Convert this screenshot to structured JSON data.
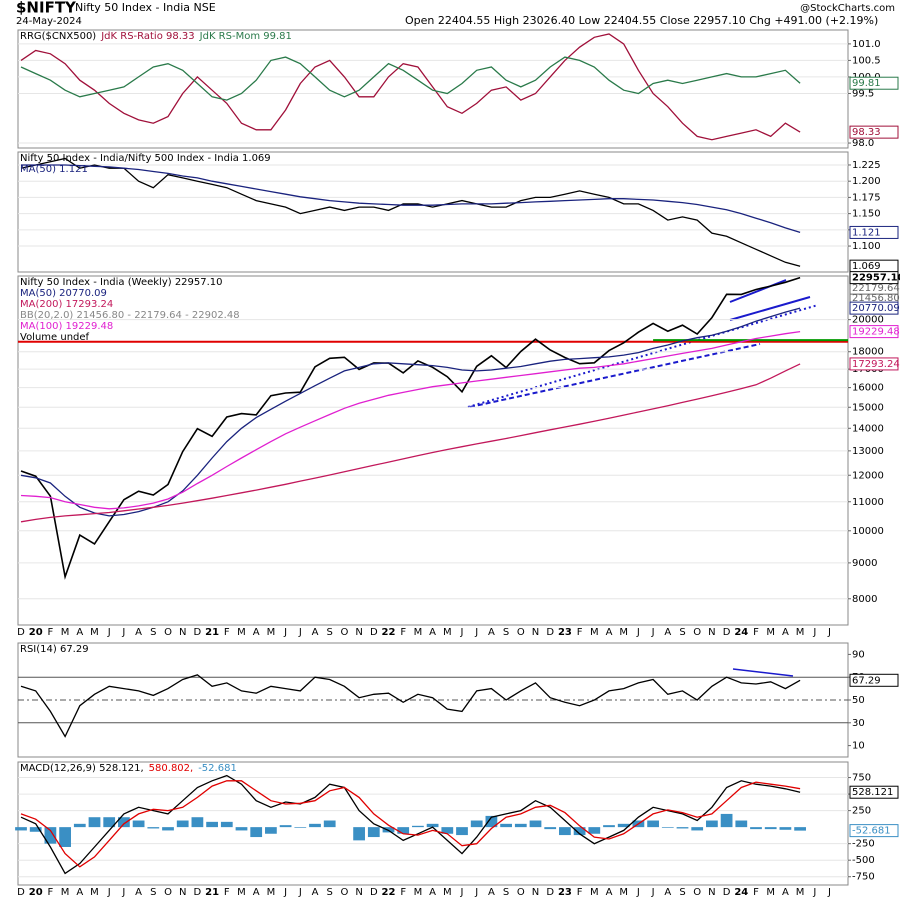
{
  "header": {
    "symbol": "$NIFTY",
    "name": "Nifty 50 Index - India NSE",
    "date": "24-May-2024",
    "quote": "Open 22404.55  High 23026.40  Low 22404.55  Close 22957.10  Chg +491.00 (+2.19%)",
    "credit": "@StockCharts.com"
  },
  "chart_data": [
    {
      "type": "line",
      "title": "RRG($CNX500)",
      "legend": "inline",
      "ylim": [
        97.85,
        101.42
      ],
      "yticks": [
        {
          "value": 101,
          "label": "101.0"
        },
        100.5,
        {
          "value": 100,
          "label": "100.0"
        },
        99.5,
        {
          "value": 98,
          "label": "98.0"
        }
      ],
      "grid": true,
      "series": [
        {
          "name": "JdK RS-Ratio 98.33",
          "color": "#a0103a",
          "last_label": "98.33",
          "values": [
            100.5,
            100.8,
            100.7,
            100.4,
            99.9,
            99.6,
            99.2,
            98.9,
            98.7,
            98.6,
            98.8,
            99.5,
            100.0,
            99.6,
            99.2,
            98.6,
            98.4,
            98.4,
            99.0,
            99.8,
            100.3,
            100.5,
            100.0,
            99.4,
            99.4,
            100.0,
            100.4,
            100.3,
            99.7,
            99.1,
            98.9,
            99.2,
            99.6,
            99.7,
            99.3,
            99.5,
            100.0,
            100.5,
            100.9,
            101.2,
            101.3,
            101.0,
            100.2,
            99.5,
            99.1,
            98.6,
            98.2,
            98.1,
            98.2,
            98.3,
            98.4,
            98.2,
            98.6,
            98.33,
            null,
            null
          ]
        },
        {
          "name": "JdK RS-Mom 99.81",
          "color": "#2a7a4a",
          "last_label": "99.81",
          "values": [
            100.3,
            100.1,
            99.9,
            99.6,
            99.4,
            99.5,
            99.6,
            99.7,
            100.0,
            100.3,
            100.4,
            100.2,
            99.8,
            99.4,
            99.3,
            99.5,
            99.9,
            100.5,
            100.6,
            100.4,
            100.0,
            99.6,
            99.4,
            99.6,
            100.0,
            100.4,
            100.2,
            99.9,
            99.6,
            99.5,
            99.8,
            100.2,
            100.3,
            99.9,
            99.7,
            99.9,
            100.3,
            100.6,
            100.5,
            100.3,
            99.9,
            99.6,
            99.5,
            99.8,
            99.9,
            99.8,
            99.9,
            100.0,
            100.1,
            100.0,
            100.0,
            100.1,
            100.2,
            99.81,
            null,
            null
          ]
        }
      ]
    },
    {
      "type": "line",
      "legend": "stacked",
      "ylim": [
        1.06,
        1.245
      ],
      "yticks": [
        1.225,
        {
          "value": 1.2,
          "label": "1.200"
        },
        1.175,
        {
          "value": 1.15,
          "label": "1.150"
        },
        1.125,
        {
          "value": 1.1,
          "label": "1.100"
        }
      ],
      "grid": true,
      "series": [
        {
          "name": "Nifty 50 Index - India/Nifty 500 Index - India 1.069",
          "color": "#000000",
          "last_label": "1.069",
          "values": [
            1.22,
            1.225,
            1.23,
            1.235,
            1.22,
            1.225,
            1.22,
            1.22,
            1.2,
            1.19,
            1.21,
            1.205,
            1.2,
            1.195,
            1.19,
            1.18,
            1.17,
            1.165,
            1.16,
            1.15,
            1.155,
            1.16,
            1.155,
            1.16,
            1.16,
            1.155,
            1.165,
            1.165,
            1.16,
            1.165,
            1.17,
            1.165,
            1.16,
            1.16,
            1.17,
            1.175,
            1.175,
            1.18,
            1.185,
            1.18,
            1.175,
            1.165,
            1.165,
            1.155,
            1.14,
            1.145,
            1.14,
            1.12,
            1.115,
            1.105,
            1.095,
            1.085,
            1.075,
            1.069,
            null,
            null
          ]
        },
        {
          "name": "MA(50) 1.121",
          "color": "#1a237e",
          "last_label": "1.121",
          "values": [
            1.225,
            1.225,
            1.225,
            1.225,
            1.224,
            1.223,
            1.222,
            1.22,
            1.218,
            1.215,
            1.212,
            1.208,
            1.205,
            1.2,
            1.196,
            1.192,
            1.188,
            1.184,
            1.18,
            1.176,
            1.173,
            1.17,
            1.168,
            1.166,
            1.165,
            1.164,
            1.163,
            1.163,
            1.163,
            1.164,
            1.165,
            1.165,
            1.165,
            1.166,
            1.167,
            1.168,
            1.169,
            1.17,
            1.171,
            1.172,
            1.173,
            1.173,
            1.172,
            1.171,
            1.169,
            1.167,
            1.164,
            1.16,
            1.156,
            1.15,
            1.143,
            1.136,
            1.128,
            1.121,
            null,
            null
          ]
        }
      ]
    },
    {
      "type": "line",
      "legend": "stacked",
      "log": true,
      "ylim": [
        7340,
        23080
      ],
      "yticks": [
        20000,
        18000,
        17000,
        16000,
        15000,
        14000,
        13000,
        12000,
        11000,
        10000,
        9000,
        8000
      ],
      "grid": true,
      "categories": [
        "D",
        "20",
        "F",
        "M",
        "A",
        "M",
        "J",
        "J",
        "A",
        "S",
        "O",
        "N",
        "D",
        "21",
        "F",
        "M",
        "A",
        "M",
        "J",
        "J",
        "A",
        "S",
        "O",
        "N",
        "D",
        "22",
        "F",
        "M",
        "A",
        "M",
        "J",
        "J",
        "A",
        "S",
        "O",
        "N",
        "D",
        "23",
        "F",
        "M",
        "A",
        "M",
        "J",
        "J",
        "A",
        "S",
        "O",
        "N",
        "D",
        "24",
        "F",
        "M",
        "A",
        "M",
        "J",
        "J"
      ],
      "hlines": [
        {
          "value": 18600,
          "color": "#e00000"
        },
        {
          "value": 18700,
          "color": "#009900"
        }
      ],
      "series": [
        {
          "name": "Nifty 50 Index - India (Weekly) 22957.10",
          "color": "#000000",
          "last_label": "22957.10",
          "values": [
            12168,
            11962,
            11202,
            8598,
            9860,
            9580,
            10302,
            11073,
            11388,
            11248,
            11642,
            12969,
            13982,
            13635,
            14529,
            14691,
            14631,
            15583,
            15722,
            15763,
            17132,
            17618,
            17672,
            16983,
            17354,
            17340,
            16794,
            17465,
            17103,
            16585,
            15780,
            17158,
            17759,
            17094,
            18012,
            18758,
            18105,
            17662,
            17304,
            17360,
            18065,
            18534,
            19189,
            19754,
            19254,
            19638,
            19080,
            20133,
            21731,
            21726,
            22083,
            22327,
            22605,
            22957.1,
            null,
            null
          ]
        },
        {
          "name": "MA(50) 20770.09",
          "color": "#1a237e",
          "last_label": "20770.09",
          "values": [
            12000,
            11900,
            11700,
            11200,
            10800,
            10600,
            10500,
            10550,
            10650,
            10800,
            11000,
            11400,
            12000,
            12700,
            13400,
            14000,
            14500,
            14900,
            15300,
            15700,
            16100,
            16500,
            16900,
            17100,
            17300,
            17350,
            17300,
            17250,
            17200,
            17100,
            16950,
            16900,
            16950,
            17050,
            17150,
            17300,
            17450,
            17550,
            17600,
            17650,
            17700,
            17800,
            17950,
            18200,
            18400,
            18650,
            18850,
            19000,
            19250,
            19550,
            19900,
            20200,
            20500,
            20770.09,
            null,
            null
          ]
        },
        {
          "name": "MA(200) 17293.24",
          "color": "#c2185b",
          "last_label": "17293.24",
          "values": [
            10300,
            10380,
            10450,
            10500,
            10540,
            10580,
            10620,
            10680,
            10740,
            10800,
            10870,
            10950,
            11040,
            11130,
            11230,
            11330,
            11430,
            11540,
            11650,
            11770,
            11890,
            12010,
            12140,
            12270,
            12400,
            12530,
            12660,
            12800,
            12930,
            13060,
            13180,
            13300,
            13420,
            13540,
            13670,
            13800,
            13930,
            14060,
            14190,
            14330,
            14470,
            14620,
            14770,
            14920,
            15080,
            15240,
            15410,
            15580,
            15760,
            15950,
            16150,
            16500,
            16900,
            17293.24,
            null,
            null
          ]
        },
        {
          "name": "MA(100) 19229.48",
          "color": "#e020d0",
          "last_label": "19229.48",
          "values": [
            11230,
            11200,
            11150,
            11000,
            10900,
            10800,
            10750,
            10780,
            10850,
            10950,
            11100,
            11350,
            11680,
            12000,
            12350,
            12700,
            13050,
            13400,
            13750,
            14050,
            14350,
            14650,
            14950,
            15200,
            15400,
            15600,
            15750,
            15900,
            16050,
            16150,
            16250,
            16350,
            16450,
            16550,
            16650,
            16750,
            16850,
            16950,
            17050,
            17100,
            17200,
            17300,
            17450,
            17600,
            17750,
            17900,
            18050,
            18200,
            18400,
            18600,
            18800,
            18950,
            19100,
            19229.48,
            null,
            null
          ]
        }
      ],
      "bb": {
        "label": "BB(20,2.0) 21456.80 - 22179.64 - 22902.48",
        "lower": 21456.8,
        "middle": 22179.64,
        "box_labels": [
          "21456.80",
          "22179.64"
        ]
      },
      "volume_label": "Volume undef"
    },
    {
      "type": "line",
      "legend": "stacked",
      "ylim": [
        0,
        100
      ],
      "yticks": [
        90,
        70,
        50,
        30,
        10
      ],
      "ref_lines": [
        70,
        50,
        30
      ],
      "series": [
        {
          "name": "RSI(14) 67.29",
          "color": "#000000",
          "last_label": "67.29",
          "values": [
            62,
            58,
            40,
            18,
            45,
            55,
            62,
            60,
            58,
            54,
            60,
            68,
            72,
            62,
            65,
            58,
            56,
            62,
            60,
            58,
            70,
            68,
            62,
            52,
            55,
            56,
            48,
            55,
            52,
            42,
            40,
            58,
            60,
            50,
            58,
            65,
            52,
            48,
            45,
            50,
            58,
            60,
            65,
            68,
            55,
            58,
            50,
            62,
            70,
            65,
            64,
            66,
            60,
            67.29,
            null,
            null
          ]
        }
      ]
    },
    {
      "type": "line",
      "legend": "inline",
      "ylim": [
        -875,
        985
      ],
      "yticks": [
        750,
        500,
        250,
        -250,
        -500,
        -750
      ],
      "grid": true,
      "series": [
        {
          "name": "-52.681",
          "kind": "bar",
          "color": "#3a8fc4",
          "last_label": "-52.681",
          "values": [
            -50,
            -70,
            -250,
            -300,
            50,
            150,
            150,
            150,
            100,
            -20,
            -50,
            100,
            150,
            80,
            80,
            -50,
            -150,
            -100,
            30,
            -10,
            50,
            100,
            0,
            -200,
            -150,
            -80,
            -100,
            20,
            50,
            -100,
            -120,
            100,
            170,
            50,
            50,
            100,
            -30,
            -120,
            -120,
            -100,
            30,
            50,
            100,
            100,
            -10,
            -20,
            -50,
            100,
            200,
            100,
            -30,
            -30,
            -40,
            -52.681,
            null,
            null
          ]
        },
        {
          "name": "MACD(12,26,9) 528.121,",
          "color": "#000000",
          "last_label": "528.121",
          "values": [
            150,
            50,
            -300,
            -700,
            -550,
            -300,
            -50,
            200,
            300,
            250,
            200,
            400,
            600,
            700,
            780,
            650,
            400,
            300,
            380,
            350,
            450,
            650,
            600,
            250,
            50,
            -50,
            -200,
            -100,
            0,
            -200,
            -400,
            -150,
            150,
            200,
            250,
            400,
            300,
            100,
            -100,
            -250,
            -150,
            -50,
            150,
            300,
            250,
            200,
            100,
            300,
            600,
            700,
            650,
            620,
            580,
            528.121,
            null,
            null
          ]
        },
        {
          "name": "580.802,",
          "color": "#e00000",
          "values": [
            200,
            120,
            -50,
            -400,
            -600,
            -450,
            -200,
            50,
            200,
            270,
            250,
            300,
            450,
            620,
            700,
            700,
            550,
            400,
            350,
            360,
            400,
            550,
            600,
            450,
            200,
            30,
            -100,
            -120,
            -50,
            -100,
            -280,
            -250,
            -20,
            150,
            200,
            300,
            330,
            220,
            20,
            -150,
            -180,
            -100,
            50,
            200,
            260,
            220,
            150,
            200,
            400,
            600,
            680,
            650,
            620,
            580.802,
            null,
            null
          ]
        }
      ]
    }
  ]
}
